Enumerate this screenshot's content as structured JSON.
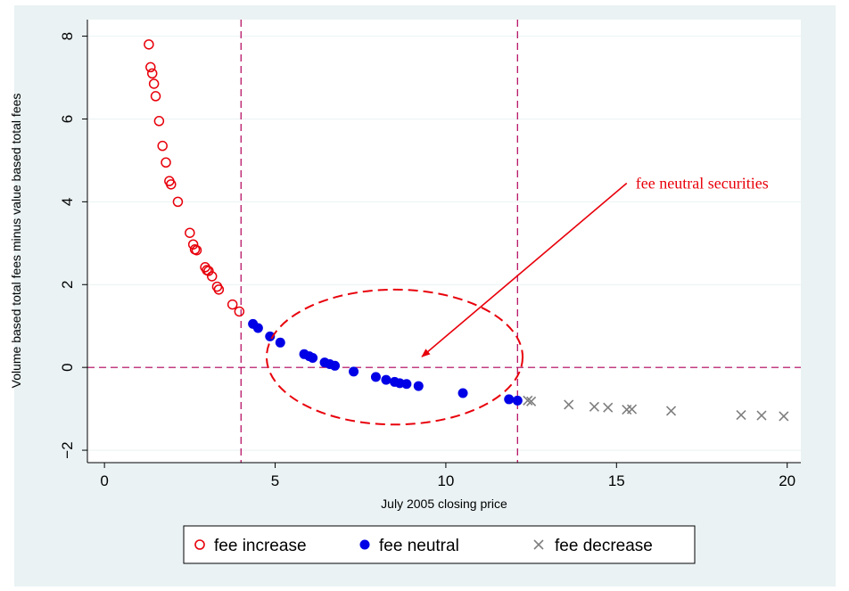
{
  "chart_data": {
    "type": "scatter",
    "title": "",
    "xlabel": "July 2005 closing price",
    "ylabel": "Volume based total fees minus value based total fees",
    "xlim": [
      -0.5,
      20.4
    ],
    "ylim": [
      -2.3,
      8.4
    ],
    "xticks": [
      0,
      5,
      10,
      15,
      20
    ],
    "yticks": [
      -2,
      0,
      2,
      4,
      6,
      8
    ],
    "xtick_labels": [
      "0",
      "5",
      "10",
      "15",
      "20"
    ],
    "ytick_labels": [
      "−2",
      "0",
      "2",
      "4",
      "6",
      "8"
    ],
    "grid": "horizontal",
    "legend_position": "bottom",
    "reference_lines": {
      "vertical": [
        4.0,
        12.1
      ],
      "horizontal": [
        0
      ]
    },
    "annotation": {
      "text": "fee neutral securities",
      "ellipse_center": [
        8.5,
        0.25
      ],
      "ellipse_semi_axes": [
        3.75,
        1.63
      ],
      "arrow_from": [
        15.3,
        4.45
      ],
      "arrow_to": [
        9.3,
        0.26
      ]
    },
    "series": [
      {
        "name": "fee increase",
        "marker": "hollow-circle",
        "color": "#e8000b",
        "points": [
          [
            1.3,
            7.8
          ],
          [
            1.35,
            7.25
          ],
          [
            1.4,
            7.1
          ],
          [
            1.45,
            6.85
          ],
          [
            1.5,
            6.55
          ],
          [
            1.6,
            5.95
          ],
          [
            1.7,
            5.35
          ],
          [
            1.8,
            4.95
          ],
          [
            1.9,
            4.5
          ],
          [
            1.95,
            4.42
          ],
          [
            2.15,
            4.0
          ],
          [
            2.5,
            3.25
          ],
          [
            2.6,
            2.97
          ],
          [
            2.65,
            2.85
          ],
          [
            2.7,
            2.83
          ],
          [
            2.95,
            2.42
          ],
          [
            3.0,
            2.35
          ],
          [
            3.05,
            2.33
          ],
          [
            3.15,
            2.2
          ],
          [
            3.3,
            1.95
          ],
          [
            3.35,
            1.88
          ],
          [
            3.75,
            1.52
          ],
          [
            3.95,
            1.35
          ]
        ]
      },
      {
        "name": "fee neutral",
        "marker": "filled-circle",
        "color": "#0000e6",
        "points": [
          [
            4.35,
            1.05
          ],
          [
            4.5,
            0.95
          ],
          [
            4.85,
            0.75
          ],
          [
            5.15,
            0.6
          ],
          [
            5.85,
            0.32
          ],
          [
            6.0,
            0.27
          ],
          [
            6.1,
            0.23
          ],
          [
            6.45,
            0.12
          ],
          [
            6.6,
            0.08
          ],
          [
            6.75,
            0.04
          ],
          [
            7.3,
            -0.1
          ],
          [
            7.95,
            -0.23
          ],
          [
            8.25,
            -0.3
          ],
          [
            8.5,
            -0.35
          ],
          [
            8.65,
            -0.38
          ],
          [
            8.85,
            -0.4
          ],
          [
            9.2,
            -0.45
          ],
          [
            10.5,
            -0.62
          ],
          [
            11.85,
            -0.77
          ],
          [
            12.1,
            -0.8
          ]
        ]
      },
      {
        "name": "fee decrease",
        "marker": "cross",
        "color": "#7f7f7f",
        "points": [
          [
            12.4,
            -0.8
          ],
          [
            12.5,
            -0.82
          ],
          [
            13.6,
            -0.9
          ],
          [
            14.35,
            -0.95
          ],
          [
            14.75,
            -0.97
          ],
          [
            15.3,
            -1.02
          ],
          [
            15.45,
            -1.01
          ],
          [
            16.6,
            -1.05
          ],
          [
            18.65,
            -1.15
          ],
          [
            19.25,
            -1.16
          ],
          [
            19.9,
            -1.18
          ]
        ]
      }
    ]
  }
}
